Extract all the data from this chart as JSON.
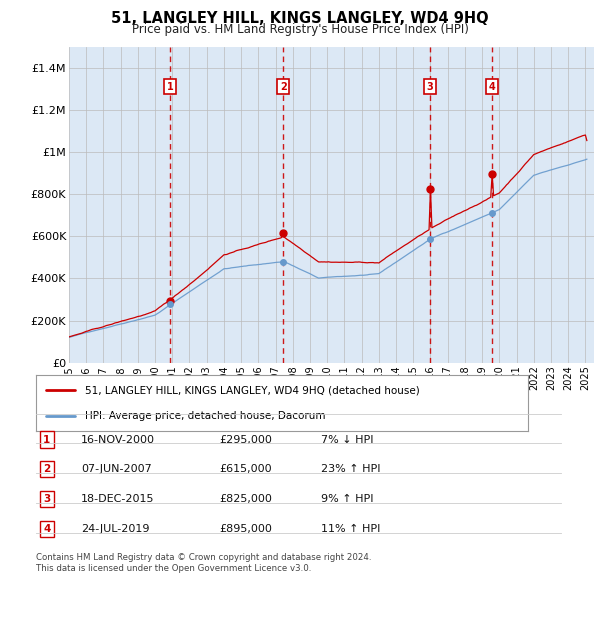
{
  "title": "51, LANGLEY HILL, KINGS LANGLEY, WD4 9HQ",
  "subtitle": "Price paid vs. HM Land Registry's House Price Index (HPI)",
  "footer1": "Contains HM Land Registry data © Crown copyright and database right 2024.",
  "footer2": "This data is licensed under the Open Government Licence v3.0.",
  "legend_line1": "51, LANGLEY HILL, KINGS LANGLEY, WD4 9HQ (detached house)",
  "legend_line2": "HPI: Average price, detached house, Dacorum",
  "transactions": [
    {
      "num": 1,
      "date": "16-NOV-2000",
      "price": "£295,000",
      "hpi": "7% ↓ HPI",
      "year": 2000.88
    },
    {
      "num": 2,
      "date": "07-JUN-2007",
      "price": "£615,000",
      "hpi": "23% ↑ HPI",
      "year": 2007.44
    },
    {
      "num": 3,
      "date": "18-DEC-2015",
      "price": "£825,000",
      "hpi": "9% ↑ HPI",
      "year": 2015.96
    },
    {
      "num": 4,
      "date": "24-JUL-2019",
      "price": "£895,000",
      "hpi": "11% ↑ HPI",
      "year": 2019.56
    }
  ],
  "transaction_values": [
    295000,
    615000,
    825000,
    895000
  ],
  "price_paid_color": "#cc0000",
  "hpi_color": "#6699cc",
  "vline_color": "#cc0000",
  "background_color": "#dce8f5",
  "grid_color": "#bbbbbb",
  "ylim": [
    0,
    1500000
  ],
  "xlim_start": 1995,
  "xlim_end": 2025.5,
  "yticks": [
    0,
    200000,
    400000,
    600000,
    800000,
    1000000,
    1200000,
    1400000
  ],
  "ytick_labels": [
    "£0",
    "£200K",
    "£400K",
    "£600K",
    "£800K",
    "£1M",
    "£1.2M",
    "£1.4M"
  ],
  "xticks": [
    1995,
    1996,
    1997,
    1998,
    1999,
    2000,
    2001,
    2002,
    2003,
    2004,
    2005,
    2006,
    2007,
    2008,
    2009,
    2010,
    2011,
    2012,
    2013,
    2014,
    2015,
    2016,
    2017,
    2018,
    2019,
    2020,
    2021,
    2022,
    2023,
    2024,
    2025
  ]
}
